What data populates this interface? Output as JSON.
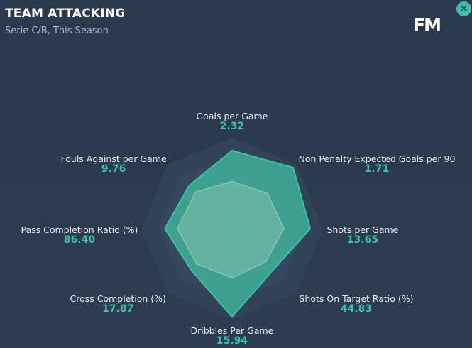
{
  "header": {
    "title": "TEAM ATTACKING",
    "subtitle": "Serie C/B, This Season",
    "logo": "FM",
    "close_icon": "close-icon",
    "close_symbol": "✕"
  },
  "colors": {
    "background": "#2c3b50",
    "accent": "#39c3a6",
    "team_fill": "#3fb39b",
    "average_fill": "#7fbfae"
  },
  "chart_data": {
    "type": "radar",
    "title": "TEAM ATTACKING",
    "subtitle": "Serie C/B, This Season",
    "axes": [
      {
        "name": "Goals per Game",
        "value": "2.32",
        "team": 0.86,
        "average": 0.52
      },
      {
        "name": "Non Penalty Expected Goals per 90",
        "value": "1.71",
        "team": 0.95,
        "average": 0.55
      },
      {
        "name": "Shots per Game",
        "value": "13.65",
        "team": 0.86,
        "average": 0.57
      },
      {
        "name": "Shots On Target Ratio (%)",
        "value": "44.83",
        "team": 0.64,
        "average": 0.52
      },
      {
        "name": "Dribbles Per Game",
        "value": "15.94",
        "team": 0.97,
        "average": 0.54
      },
      {
        "name": "Cross Completion (%)",
        "value": "17.87",
        "team": 0.64,
        "average": 0.55
      },
      {
        "name": "Pass Completion Ratio (%)",
        "value": "86.40",
        "team": 0.74,
        "average": 0.6
      },
      {
        "name": "Fouls Against per Game",
        "value": "9.76",
        "team": 0.67,
        "average": 0.57
      }
    ]
  }
}
